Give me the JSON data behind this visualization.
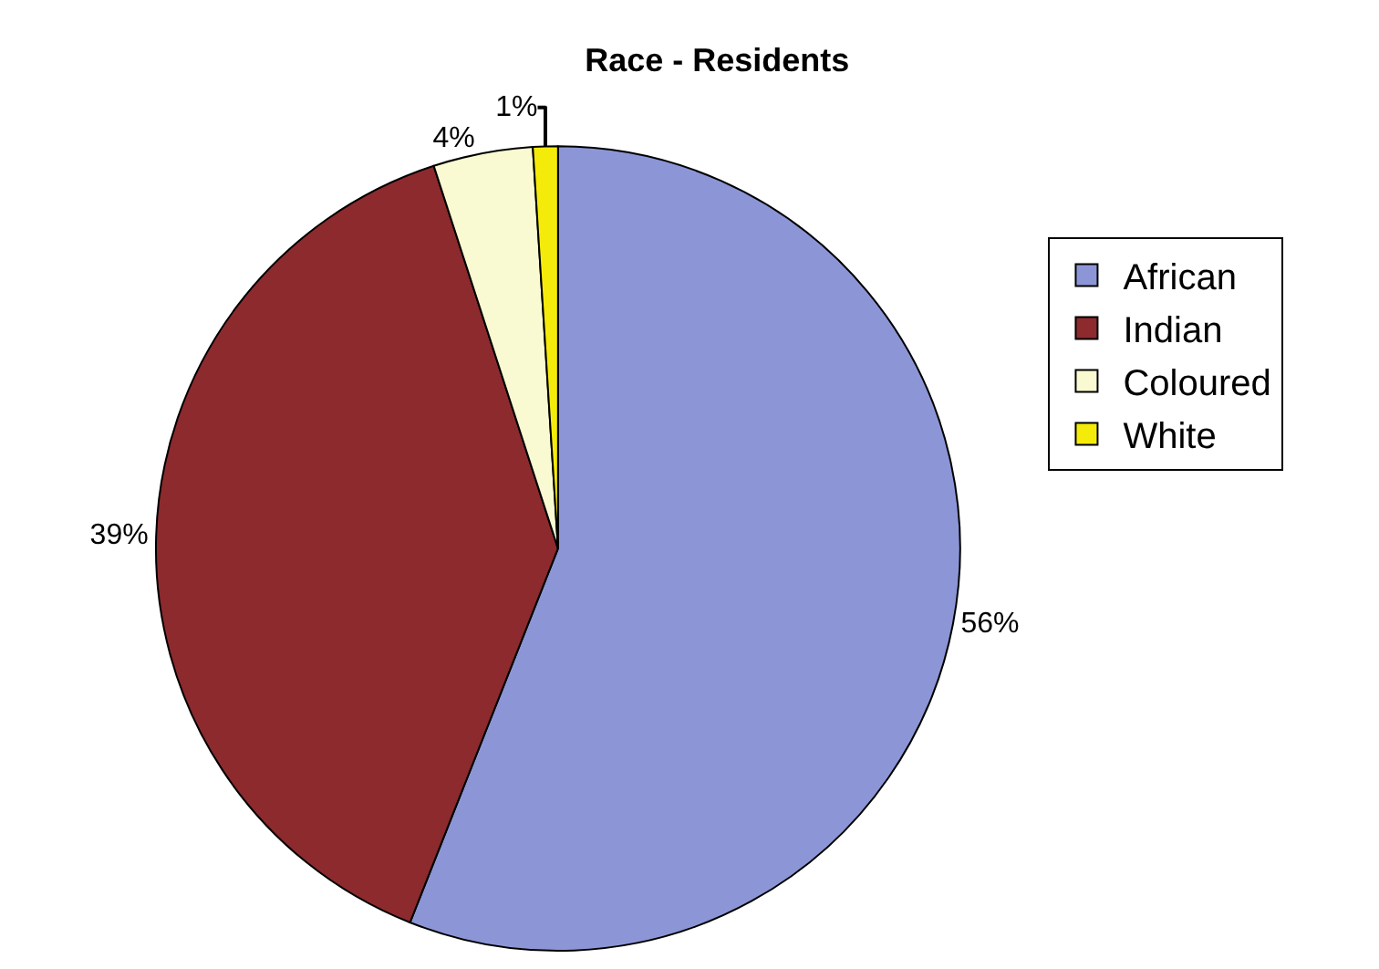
{
  "chart_data": {
    "type": "pie",
    "title": "Race - Residents",
    "categories": [
      "African",
      "Indian",
      "Coloured",
      "White"
    ],
    "values": [
      56,
      39,
      4,
      1
    ],
    "value_labels": [
      "56%",
      "39%",
      "4%",
      "1%"
    ],
    "colors": [
      "#8c96d6",
      "#8c2a2e",
      "#fafad2",
      "#f5eb0a"
    ],
    "legend": "right"
  }
}
